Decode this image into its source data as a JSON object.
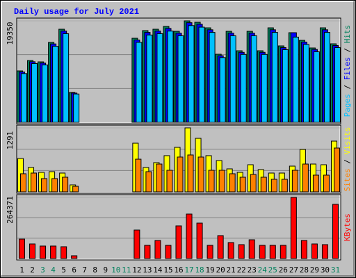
{
  "chart_data": {
    "type": "bar",
    "title": "Daily usage for July 2021",
    "categories": [
      "1",
      "2",
      "3",
      "4",
      "5",
      "6",
      "7",
      "8",
      "9",
      "10",
      "11",
      "12",
      "13",
      "14",
      "15",
      "16",
      "17",
      "18",
      "19",
      "20",
      "21",
      "22",
      "23",
      "24",
      "25",
      "26",
      "27",
      "28",
      "29",
      "30",
      "31"
    ],
    "category_colors": [
      "#000000",
      "#000000",
      "#00805c",
      "#00805c",
      "#000000",
      "#000000",
      "#000000",
      "#000000",
      "#000000",
      "#00805c",
      "#00805c",
      "#000000",
      "#000000",
      "#000000",
      "#000000",
      "#000000",
      "#00805c",
      "#00805c",
      "#000000",
      "#000000",
      "#000000",
      "#000000",
      "#000000",
      "#00805c",
      "#00805c",
      "#000000",
      "#000000",
      "#000000",
      "#000000",
      "#000000",
      "#00805c"
    ],
    "panels": [
      {
        "ylim": [
          0,
          19350
        ],
        "yticks": [
          19350
        ],
        "series": [
          {
            "name": "Hits",
            "color": "#00805c",
            "values": [
              9805,
              11793,
              11528,
              15238,
              17755,
              5698,
              0,
              0,
              0,
              0,
              0,
              16033,
              17490,
              17755,
              18285,
              17358,
              19350,
              19080,
              18020,
              12985,
              17358,
              13648,
              17358,
              13648,
              18020,
              14575,
              17093,
              15635,
              14178,
              18020,
              14973
            ]
          },
          {
            "name": "Files",
            "color": "#0000ff",
            "values": [
              9600,
              11550,
              11300,
              14950,
              17400,
              5580,
              0,
              0,
              0,
              0,
              0,
              15700,
              17150,
              17400,
              17900,
              17000,
              19000,
              18700,
              17650,
              12700,
              17000,
              13350,
              17000,
              13350,
              17650,
              14250,
              17093,
              15300,
              13900,
              17650,
              14650
            ]
          },
          {
            "name": "Pages",
            "color": "#00c0ff",
            "values": [
              9300,
              11200,
              10950,
              14500,
              16900,
              5400,
              0,
              0,
              0,
              0,
              0,
              15250,
              16650,
              16900,
              17400,
              16500,
              18450,
              18150,
              17150,
              12350,
              16500,
              12950,
              16500,
              12950,
              17150,
              13850,
              16250,
              14850,
              13450,
              17150,
              14250
            ]
          }
        ]
      },
      {
        "ylim": [
          0,
          1291
        ],
        "yticks": [
          1291
        ],
        "series": [
          {
            "name": "Visits",
            "color": "#ffff00",
            "values": [
              673,
              491,
              393,
              407,
              379,
              140,
              0,
              0,
              0,
              0,
              0,
              982,
              491,
              589,
              730,
              898,
              1291,
              1080,
              730,
              631,
              463,
              393,
              547,
              449,
              379,
              379,
              519,
              856,
              561,
              547,
              1024
            ]
          },
          {
            "name": "Sites",
            "color": "#ff8000",
            "values": [
              365,
              379,
              267,
              267,
              295,
              112,
              0,
              0,
              0,
              0,
              0,
              659,
              407,
              561,
              435,
              702,
              744,
              702,
              435,
              435,
              365,
              295,
              351,
              295,
              253,
              253,
              435,
              561,
              337,
              337,
              884
            ]
          }
        ]
      },
      {
        "ylim": [
          0,
          264371
        ],
        "yticks": [
          264371
        ],
        "series": [
          {
            "name": "KBytes",
            "color": "#ff0000",
            "values": [
              84118,
              63090,
              54080,
              54080,
              51070,
              12018,
              0,
              0,
              0,
              0,
              0,
              123170,
              57080,
              78110,
              57080,
              141200,
              192260,
              153200,
              57080,
              99130,
              69090,
              60080,
              81110,
              57080,
              57080,
              57080,
              264371,
              78110,
              63090,
              60080,
              234330
            ]
          }
        ]
      }
    ]
  }
}
